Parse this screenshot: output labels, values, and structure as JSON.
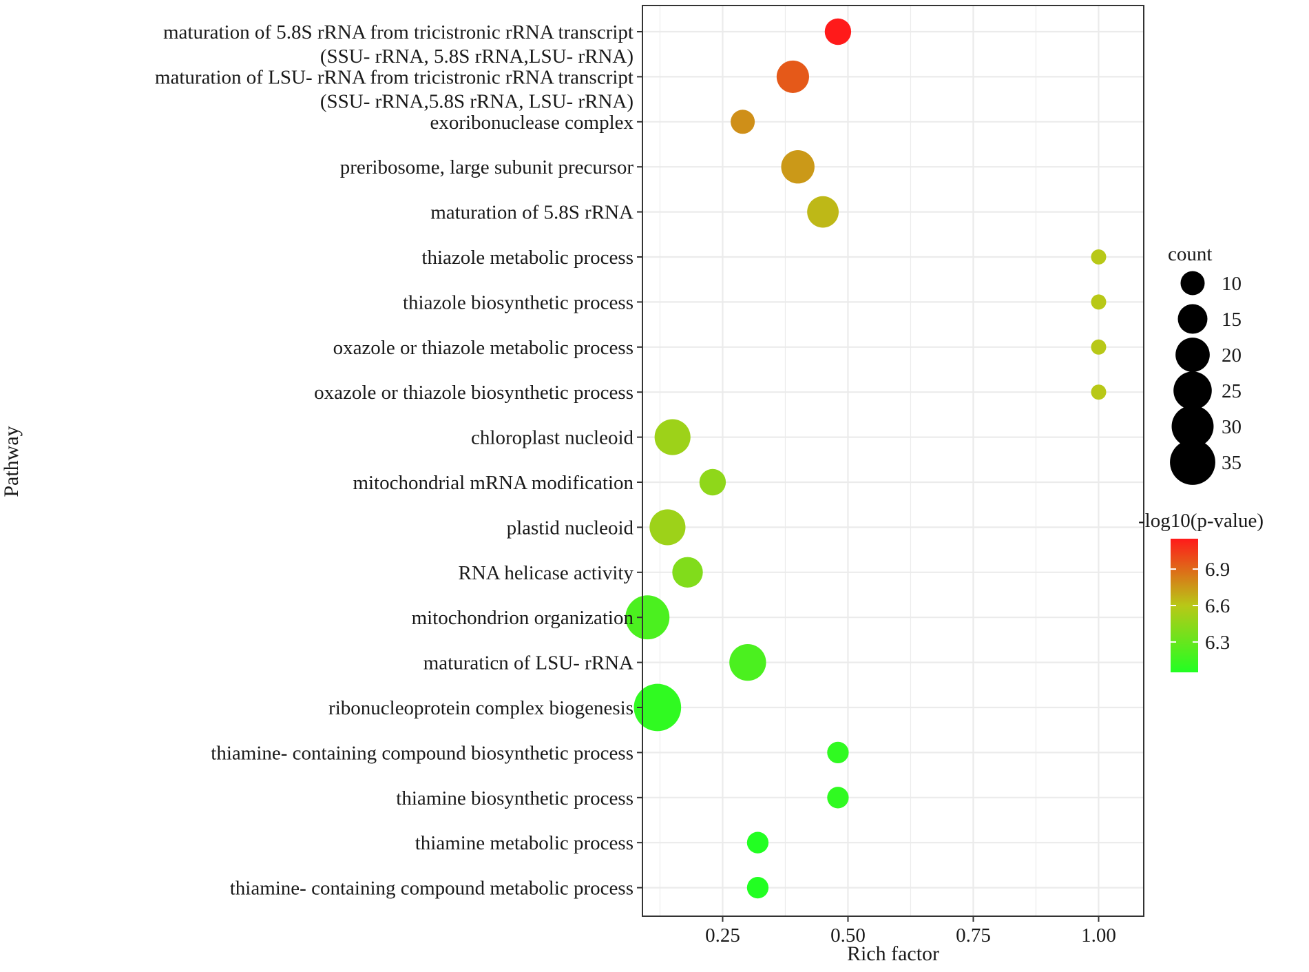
{
  "chart_data": {
    "type": "scatter",
    "title": "",
    "xlabel": "Rich factor",
    "ylabel": "Pathway",
    "xlim": [
      0.09,
      1.09
    ],
    "x_ticks": [
      0.25,
      0.5,
      0.75,
      1.0
    ],
    "x_tick_labels": [
      "0.25",
      "0.50",
      "0.75",
      "1.00"
    ],
    "grid": true,
    "legend_position": "right",
    "categories": [
      "maturation of 5.8S rRNA from tricistronic rRNA transcript\n(SSU- rRNA, 5.8S rRNA,LSU- rRNA)",
      "maturation of LSU- rRNA from tricistronic rRNA transcript\n(SSU- rRNA,5.8S rRNA, LSU- rRNA)",
      "exoribonuclease complex",
      "preribosome, large subunit precursor",
      "maturation of 5.8S rRNA",
      "thiazole metabolic process",
      "thiazole biosynthetic process",
      "oxazole or thiazole metabolic process",
      "oxazole or thiazole biosynthetic process",
      "chloroplast nucleoid",
      "mitochondrial mRNA modification",
      "plastid nucleoid",
      "RNA helicase activity",
      "mitochondrion organization",
      "maturaticn of LSU- rRNA",
      "ribonucleoprotein complex biogenesis",
      "thiamine- containing compound biosynthetic process",
      "thiamine biosynthetic process",
      "thiamine metabolic process",
      "thiamine- containing compound metabolic process"
    ],
    "points": [
      {
        "rich_factor": 0.48,
        "count": 12,
        "neg_log10_p": 7.15
      },
      {
        "rich_factor": 0.39,
        "count": 18,
        "neg_log10_p": 6.95
      },
      {
        "rich_factor": 0.29,
        "count": 10,
        "neg_log10_p": 6.78
      },
      {
        "rich_factor": 0.4,
        "count": 19,
        "neg_log10_p": 6.75
      },
      {
        "rich_factor": 0.45,
        "count": 17,
        "neg_log10_p": 6.65
      },
      {
        "rich_factor": 1.0,
        "count": 4,
        "neg_log10_p": 6.6
      },
      {
        "rich_factor": 1.0,
        "count": 4,
        "neg_log10_p": 6.6
      },
      {
        "rich_factor": 1.0,
        "count": 4,
        "neg_log10_p": 6.6
      },
      {
        "rich_factor": 1.0,
        "count": 4,
        "neg_log10_p": 6.6
      },
      {
        "rich_factor": 0.15,
        "count": 22,
        "neg_log10_p": 6.5
      },
      {
        "rich_factor": 0.23,
        "count": 12,
        "neg_log10_p": 6.45
      },
      {
        "rich_factor": 0.14,
        "count": 22,
        "neg_log10_p": 6.5
      },
      {
        "rich_factor": 0.18,
        "count": 16,
        "neg_log10_p": 6.4
      },
      {
        "rich_factor": 0.1,
        "count": 33,
        "neg_log10_p": 6.2
      },
      {
        "rich_factor": 0.3,
        "count": 23,
        "neg_log10_p": 6.2
      },
      {
        "rich_factor": 0.12,
        "count": 38,
        "neg_log10_p": 6.1
      },
      {
        "rich_factor": 0.48,
        "count": 8,
        "neg_log10_p": 6.1
      },
      {
        "rich_factor": 0.48,
        "count": 8,
        "neg_log10_p": 6.1
      },
      {
        "rich_factor": 0.32,
        "count": 8,
        "neg_log10_p": 6.05
      },
      {
        "rich_factor": 0.32,
        "count": 8,
        "neg_log10_p": 6.05
      }
    ],
    "size_legend": {
      "title": "count",
      "values": [
        10,
        15,
        20,
        25,
        30,
        35
      ],
      "labels": [
        "10",
        "15",
        "20",
        "25",
        "30",
        "35"
      ]
    },
    "color_legend": {
      "title": "-log10(p-value)",
      "min": 6.05,
      "max": 7.15,
      "ticks": [
        6.9,
        6.6,
        6.3
      ],
      "tick_labels": [
        "6.9",
        "6.6",
        "6.3"
      ],
      "colors": {
        "low": "#22ff22",
        "mid": "#b8c817",
        "high": "#ff1a1a"
      }
    },
    "colors": {
      "grid": "#ebebeb",
      "panel_border": "#333333",
      "size_key": "#000000"
    }
  }
}
